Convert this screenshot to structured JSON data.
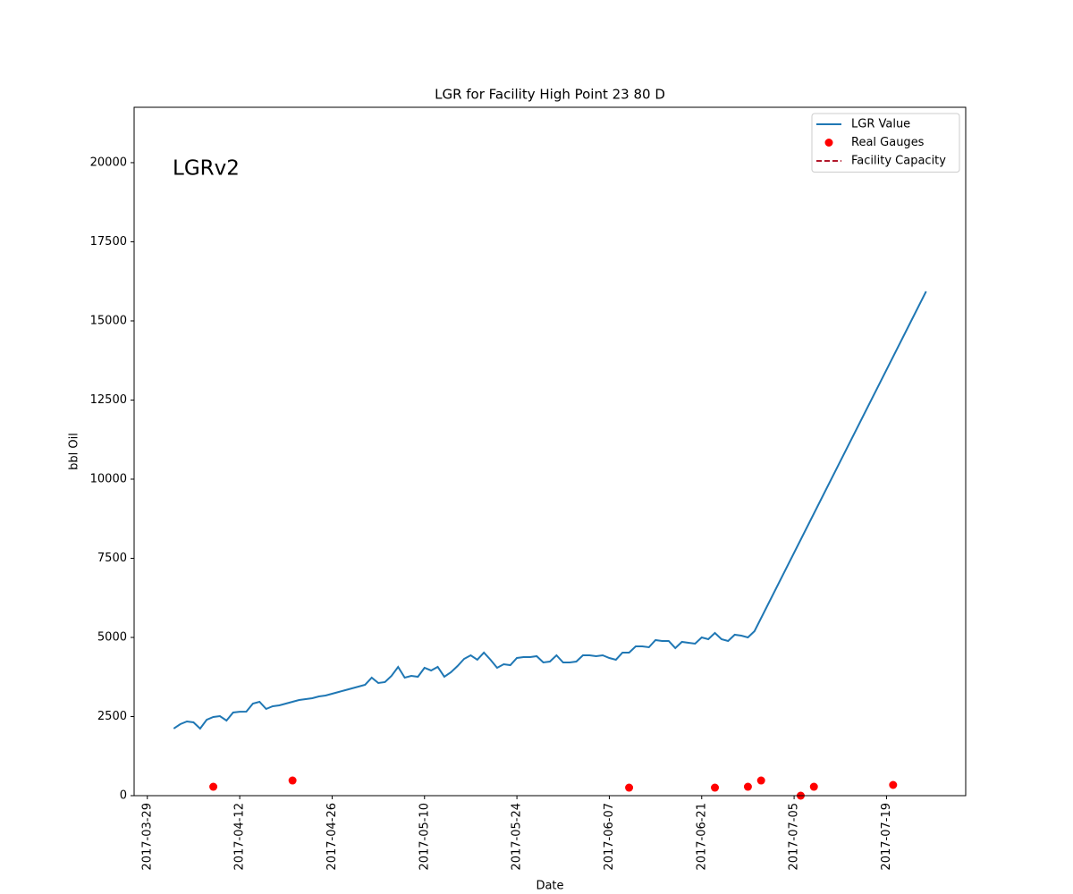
{
  "chart_data": {
    "type": "line",
    "title": "LGR for Facility High Point 23 80 D",
    "annotation": "LGRv2",
    "xlabel": "Date",
    "ylabel": "bbl Oil",
    "xlim": [
      "2017-03-27",
      "2017-07-31"
    ],
    "xticks": [
      "2017-03-29",
      "2017-04-12",
      "2017-04-26",
      "2017-05-10",
      "2017-05-24",
      "2017-06-07",
      "2017-06-21",
      "2017-07-05",
      "2017-07-19"
    ],
    "ylim": [
      0,
      21750
    ],
    "yticks": [
      0,
      2500,
      5000,
      7500,
      10000,
      12500,
      15000,
      17500,
      20000
    ],
    "legend": "upper right",
    "series": [
      {
        "name": "LGR Value",
        "type": "line",
        "color": "#1f77b4",
        "x": [
          "2017-04-02",
          "2017-04-03",
          "2017-04-04",
          "2017-04-05",
          "2017-04-06",
          "2017-04-07",
          "2017-04-08",
          "2017-04-09",
          "2017-04-10",
          "2017-04-11",
          "2017-04-12",
          "2017-04-13",
          "2017-04-14",
          "2017-04-15",
          "2017-04-16",
          "2017-04-17",
          "2017-04-18",
          "2017-04-19",
          "2017-04-20",
          "2017-04-21",
          "2017-04-22",
          "2017-04-23",
          "2017-04-24",
          "2017-04-25",
          "2017-04-26",
          "2017-04-27",
          "2017-04-28",
          "2017-04-29",
          "2017-04-30",
          "2017-05-01",
          "2017-05-02",
          "2017-05-03",
          "2017-05-04",
          "2017-05-05",
          "2017-05-06",
          "2017-05-07",
          "2017-05-08",
          "2017-05-09",
          "2017-05-10",
          "2017-05-11",
          "2017-05-12",
          "2017-05-13",
          "2017-05-14",
          "2017-05-15",
          "2017-05-16",
          "2017-05-17",
          "2017-05-18",
          "2017-05-19",
          "2017-05-20",
          "2017-05-21",
          "2017-05-22",
          "2017-05-23",
          "2017-05-24",
          "2017-05-25",
          "2017-05-26",
          "2017-05-27",
          "2017-05-28",
          "2017-05-29",
          "2017-05-30",
          "2017-05-31",
          "2017-06-01",
          "2017-06-02",
          "2017-06-03",
          "2017-06-04",
          "2017-06-05",
          "2017-06-06",
          "2017-06-07",
          "2017-06-08",
          "2017-06-09",
          "2017-06-10",
          "2017-06-11",
          "2017-06-12",
          "2017-06-13",
          "2017-06-14",
          "2017-06-15",
          "2017-06-16",
          "2017-06-17",
          "2017-06-18",
          "2017-06-19",
          "2017-06-20",
          "2017-06-21",
          "2017-06-22",
          "2017-06-23",
          "2017-06-24",
          "2017-06-25",
          "2017-06-26",
          "2017-06-27",
          "2017-06-28",
          "2017-06-29",
          "2017-07-25"
        ],
        "values": [
          2119,
          2260,
          2345,
          2316,
          2119,
          2400,
          2486,
          2514,
          2373,
          2627,
          2650,
          2655,
          2910,
          2966,
          2740,
          2825,
          2853,
          2910,
          2966,
          3022,
          3050,
          3079,
          3136,
          3164,
          3220,
          3277,
          3333,
          3390,
          3446,
          3503,
          3729,
          3559,
          3588,
          3785,
          4068,
          3729,
          3785,
          3757,
          4040,
          3955,
          4068,
          3757,
          3898,
          4096,
          4322,
          4435,
          4294,
          4520,
          4294,
          4040,
          4153,
          4124,
          4350,
          4379,
          4379,
          4407,
          4209,
          4237,
          4435,
          4209,
          4209,
          4237,
          4435,
          4435,
          4407,
          4435,
          4350,
          4294,
          4520,
          4520,
          4718,
          4718,
          4689,
          4915,
          4887,
          4887,
          4661,
          4859,
          4831,
          4802,
          5000,
          4944,
          5141,
          4944,
          4887,
          5085,
          5056,
          5000,
          5198,
          15932
        ]
      },
      {
        "name": "Real Gauges",
        "type": "scatter",
        "color": "#ff0000",
        "x": [
          "2017-04-08",
          "2017-04-20",
          "2017-06-10",
          "2017-06-23",
          "2017-06-28",
          "2017-06-30",
          "2017-07-06",
          "2017-07-08",
          "2017-07-20"
        ],
        "values": [
          282,
          480,
          254,
          254,
          282,
          480,
          0,
          282,
          339
        ]
      },
      {
        "name": "Facility Capacity",
        "type": "dashed-line",
        "color": "#b2182b",
        "x": [],
        "values": []
      }
    ]
  }
}
